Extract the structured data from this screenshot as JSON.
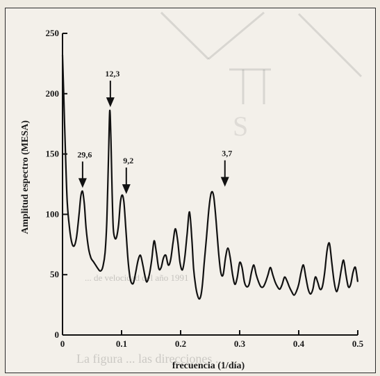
{
  "chart_data": {
    "type": "line",
    "title": "",
    "xlabel": "frecuencia (1/día)",
    "ylabel": "Amplitud espectro (MESA)",
    "xlim": [
      0,
      0.5
    ],
    "ylim": [
      0,
      250
    ],
    "xticks": [
      0,
      0.1,
      0.2,
      0.3,
      0.4,
      0.5
    ],
    "xtick_labels": [
      "0",
      "0.1",
      "0.2",
      "0.3",
      "0.4",
      "0.5"
    ],
    "yticks": [
      0,
      50,
      100,
      150,
      200,
      250
    ],
    "ytick_labels": [
      "0",
      "50",
      "100",
      "150",
      "200",
      "250"
    ],
    "grid": false,
    "series": [
      {
        "color": "#111111",
        "x": [
          0.0,
          0.002,
          0.005,
          0.008,
          0.012,
          0.016,
          0.02,
          0.024,
          0.028,
          0.031,
          0.034,
          0.037,
          0.04,
          0.044,
          0.048,
          0.052,
          0.056,
          0.06,
          0.064,
          0.068,
          0.072,
          0.075,
          0.078,
          0.08,
          0.082,
          0.084,
          0.086,
          0.089,
          0.092,
          0.095,
          0.098,
          0.101,
          0.104,
          0.107,
          0.11,
          0.113,
          0.116,
          0.12,
          0.124,
          0.128,
          0.132,
          0.136,
          0.14,
          0.143,
          0.147,
          0.151,
          0.155,
          0.159,
          0.163,
          0.167,
          0.171,
          0.175,
          0.179,
          0.183,
          0.187,
          0.191,
          0.195,
          0.199,
          0.203,
          0.207,
          0.211,
          0.215,
          0.219,
          0.222,
          0.225,
          0.228,
          0.231,
          0.234,
          0.237,
          0.24,
          0.244,
          0.248,
          0.252,
          0.256,
          0.26,
          0.264,
          0.268,
          0.272,
          0.276,
          0.28,
          0.284,
          0.288,
          0.292,
          0.296,
          0.3,
          0.304,
          0.308,
          0.312,
          0.316,
          0.32,
          0.324,
          0.328,
          0.332,
          0.336,
          0.34,
          0.344,
          0.348,
          0.352,
          0.356,
          0.36,
          0.364,
          0.368,
          0.372,
          0.376,
          0.38,
          0.384,
          0.388,
          0.392,
          0.396,
          0.4,
          0.404,
          0.408,
          0.412,
          0.416,
          0.42,
          0.424,
          0.428,
          0.432,
          0.436,
          0.44,
          0.444,
          0.448,
          0.452,
          0.456,
          0.46,
          0.464,
          0.468,
          0.472,
          0.476,
          0.48,
          0.484,
          0.488,
          0.492,
          0.496,
          0.5
        ],
        "y": [
          232,
          200,
          150,
          110,
          88,
          76,
          74,
          82,
          100,
          115,
          119,
          108,
          88,
          72,
          64,
          61,
          58,
          55,
          53,
          56,
          68,
          95,
          150,
          186,
          162,
          118,
          88,
          80,
          82,
          92,
          110,
          116,
          110,
          90,
          68,
          52,
          44,
          43,
          52,
          62,
          66,
          58,
          48,
          44,
          50,
          62,
          78,
          68,
          55,
          56,
          64,
          66,
          58,
          62,
          76,
          88,
          78,
          60,
          54,
          64,
          84,
          102,
          80,
          55,
          42,
          34,
          30,
          32,
          42,
          60,
          82,
          105,
          118,
          115,
          95,
          70,
          52,
          50,
          64,
          72,
          64,
          50,
          42,
          48,
          60,
          56,
          44,
          40,
          42,
          52,
          58,
          50,
          44,
          40,
          40,
          44,
          50,
          56,
          50,
          44,
          40,
          38,
          42,
          48,
          45,
          40,
          36,
          33,
          36,
          42,
          52,
          58,
          48,
          38,
          34,
          38,
          48,
          44,
          38,
          40,
          52,
          70,
          76,
          60,
          44,
          36,
          42,
          54,
          62,
          50,
          40,
          42,
          52,
          56,
          44
        ]
      }
    ],
    "annotations": [
      {
        "label": "29,6",
        "x": 0.034,
        "y": 119
      },
      {
        "label": "12,3",
        "x": 0.081,
        "y": 186
      },
      {
        "label": "9,2",
        "x": 0.108,
        "y": 114
      },
      {
        "label": "3,7",
        "x": 0.275,
        "y": 120
      }
    ]
  },
  "background_text": {
    "line1": "La figura ...  las direcciones ...",
    "caption": "... de velocidad del año 1991"
  }
}
